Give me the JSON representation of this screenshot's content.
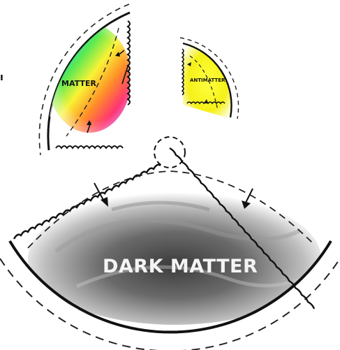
{
  "segments": {
    "matter": {
      "label": "MATTER"
    },
    "antimatter": {
      "label": "ANTIMATTER"
    },
    "dark_matter": {
      "label": "DARK MATTER"
    }
  },
  "edge_text": "ı",
  "colors": {
    "outline": "#111111",
    "antimatter_fill": "#f5f017",
    "dark_fill": "#5a5a5a"
  }
}
